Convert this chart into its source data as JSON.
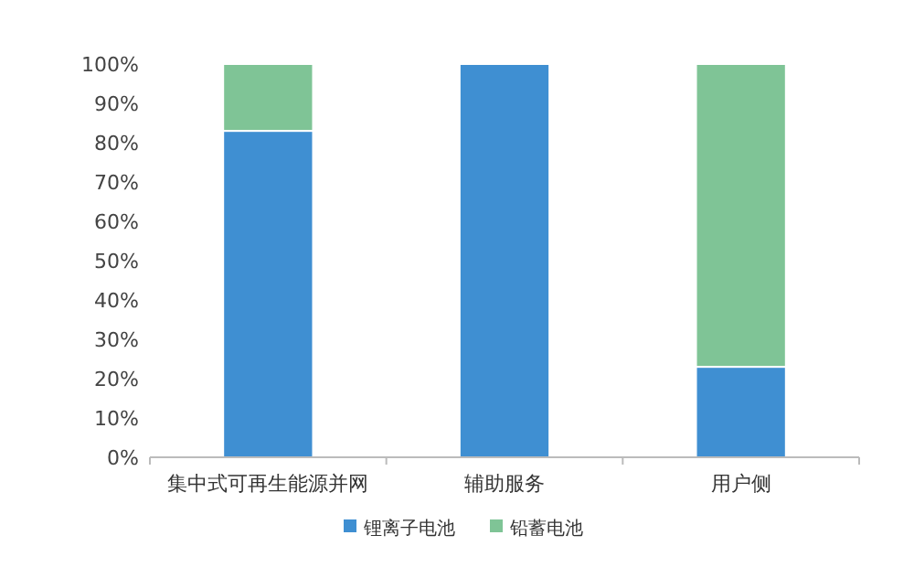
{
  "chart_data": {
    "type": "bar",
    "stacked": true,
    "categories": [
      "集中式可再生能源并网",
      "辅助服务",
      "用户侧"
    ],
    "series": [
      {
        "name": "锂离子电池",
        "color": "#3f8fd2",
        "values": [
          83,
          100,
          23
        ]
      },
      {
        "name": "铅蓄电池",
        "color": "#7fc496",
        "values": [
          17,
          0,
          77
        ]
      }
    ],
    "ylim": [
      0,
      100
    ],
    "yticks": [
      {
        "value": 0,
        "label": "0%"
      },
      {
        "value": 10,
        "label": "10%"
      },
      {
        "value": 20,
        "label": "20%"
      },
      {
        "value": 30,
        "label": "30%"
      },
      {
        "value": 40,
        "label": "40%"
      },
      {
        "value": 50,
        "label": "50%"
      },
      {
        "value": 60,
        "label": "60%"
      },
      {
        "value": 70,
        "label": "70%"
      },
      {
        "value": 80,
        "label": "80%"
      },
      {
        "value": 90,
        "label": "90%"
      },
      {
        "value": 100,
        "label": "100%"
      }
    ],
    "grid": false,
    "legend": "bottom"
  }
}
